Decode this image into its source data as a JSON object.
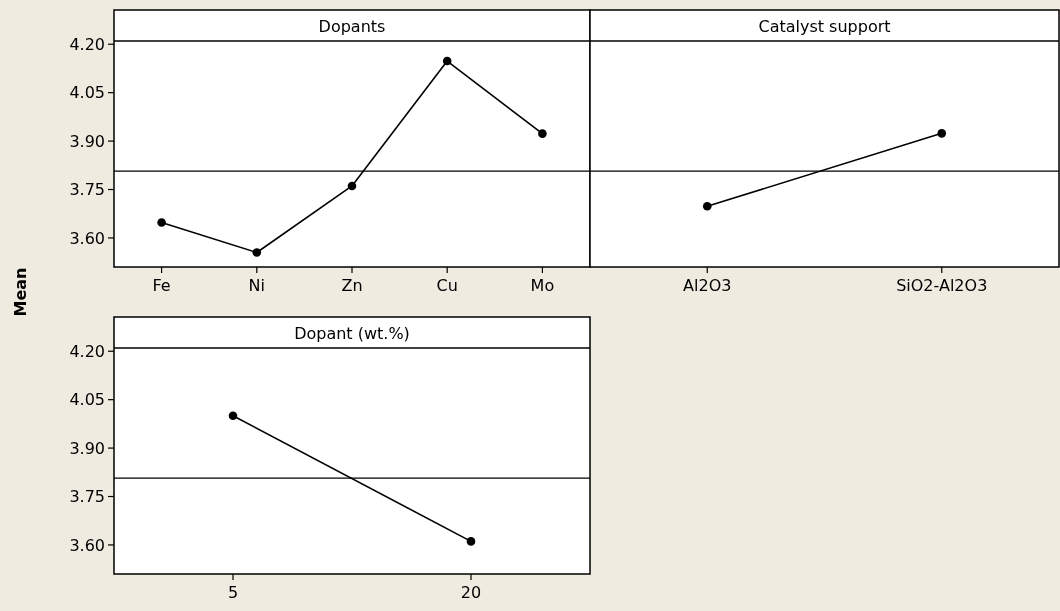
{
  "chart_data": [
    {
      "type": "line",
      "title": "Dopants",
      "ylabel": "Mean",
      "categories": [
        "Fe",
        "Ni",
        "Zn",
        "Cu",
        "Mo"
      ],
      "series": [
        {
          "color": "#000000",
          "values": [
            3.648,
            3.555,
            3.761,
            4.148,
            3.923
          ]
        }
      ],
      "ylim": [
        3.51,
        4.21
      ],
      "yticks": [
        {
          "value": 3.6,
          "label": "3.60"
        },
        {
          "value": 3.75,
          "label": "3.75"
        },
        {
          "value": 3.9,
          "label": "3.90"
        },
        {
          "value": 4.05,
          "label": "4.05"
        },
        {
          "value": 4.2,
          "label": "4.20"
        }
      ],
      "ref_lines": [
        {
          "axis": "y",
          "value": 3.807,
          "color": "#000000"
        }
      ],
      "marker": "circle"
    },
    {
      "type": "line",
      "title": "Catalyst support",
      "categories": [
        "Al2O3",
        "SiO2-Al2O3"
      ],
      "series": [
        {
          "color": "#000000",
          "values": [
            3.698,
            3.924
          ]
        }
      ],
      "ylim": [
        3.51,
        4.21
      ],
      "ref_lines": [
        {
          "axis": "y",
          "value": 3.807,
          "color": "#000000"
        }
      ],
      "marker": "circle",
      "tick_labels": "x"
    },
    {
      "type": "line",
      "title": "Dopant (wt.%)",
      "categories": [
        "5",
        "20"
      ],
      "series": [
        {
          "color": "#000000",
          "values": [
            4.0,
            3.611
          ]
        }
      ],
      "ylim": [
        3.51,
        4.21
      ],
      "yticks": [
        {
          "value": 3.6,
          "label": "3.60"
        },
        {
          "value": 3.75,
          "label": "3.75"
        },
        {
          "value": 3.9,
          "label": "3.90"
        },
        {
          "value": 4.05,
          "label": "4.05"
        },
        {
          "value": 4.2,
          "label": "4.20"
        }
      ],
      "ref_lines": [
        {
          "axis": "y",
          "value": 3.807,
          "color": "#000000"
        }
      ],
      "marker": "circle"
    }
  ]
}
